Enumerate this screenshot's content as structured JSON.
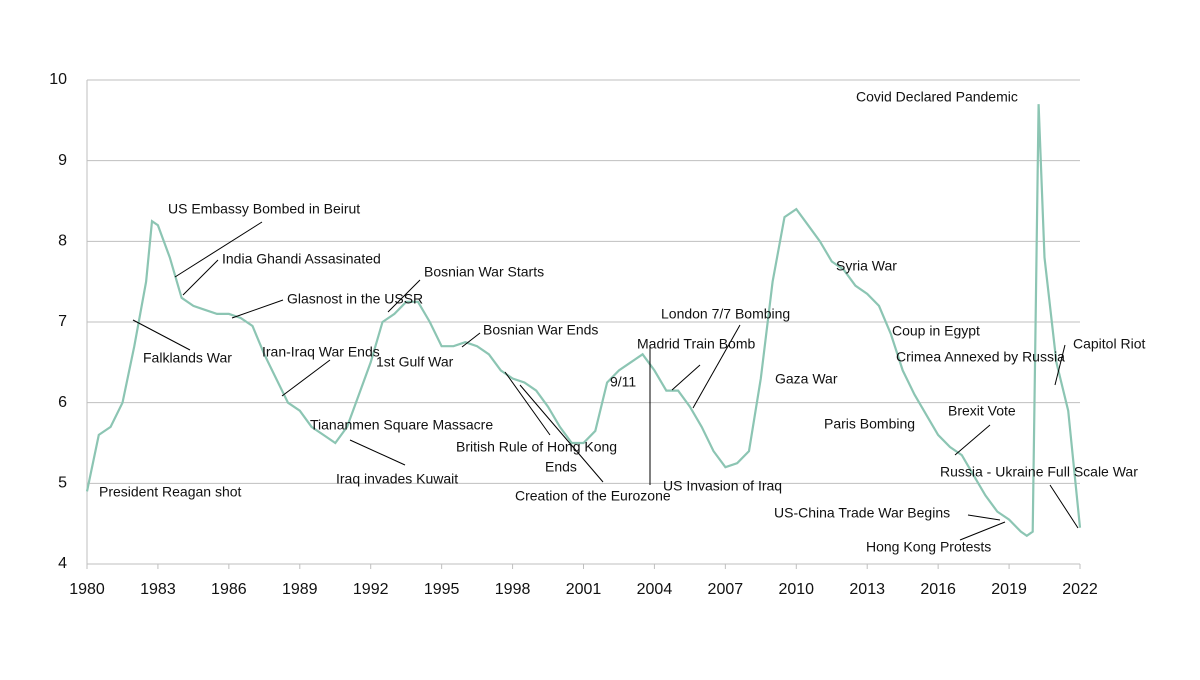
{
  "chart_data": {
    "type": "line",
    "x": [
      1980,
      1980.5,
      1981,
      1981.5,
      1982,
      1982.5,
      1982.75,
      1983,
      1983.5,
      1984,
      1984.5,
      1985,
      1985.5,
      1986,
      1986.5,
      1987,
      1987.5,
      1988,
      1988.5,
      1989,
      1989.5,
      1990,
      1990.5,
      1991,
      1991.5,
      1992,
      1992.5,
      1993,
      1993.5,
      1994,
      1994.5,
      1995,
      1995.5,
      1996,
      1996.5,
      1997,
      1997.5,
      1998,
      1998.5,
      1999,
      1999.5,
      2000,
      2000.5,
      2001,
      2001.5,
      2002,
      2002.5,
      2003,
      2003.5,
      2004,
      2004.5,
      2005,
      2005.5,
      2006,
      2006.5,
      2007,
      2007.5,
      2008,
      2008.5,
      2009,
      2009.5,
      2010,
      2010.5,
      2011,
      2011.5,
      2012,
      2012.5,
      2013,
      2013.5,
      2014,
      2014.5,
      2015,
      2015.5,
      2016,
      2016.5,
      2017,
      2017.5,
      2018,
      2018.5,
      2019,
      2019.5,
      2019.75,
      2020,
      2020.25,
      2020.5,
      2021,
      2021.5,
      2022
    ],
    "series": [
      {
        "color": "#8cc5b3",
        "values": [
          4.9,
          5.6,
          5.7,
          6.0,
          6.7,
          7.5,
          8.25,
          8.2,
          7.8,
          7.3,
          7.2,
          7.15,
          7.1,
          7.1,
          7.05,
          6.95,
          6.6,
          6.3,
          6.0,
          5.9,
          5.7,
          5.6,
          5.5,
          5.7,
          6.1,
          6.5,
          7.0,
          7.1,
          7.25,
          7.25,
          7.0,
          6.7,
          6.7,
          6.75,
          6.7,
          6.6,
          6.4,
          6.3,
          6.25,
          6.15,
          5.95,
          5.7,
          5.5,
          5.5,
          5.65,
          6.25,
          6.4,
          6.5,
          6.6,
          6.4,
          6.15,
          6.15,
          5.95,
          5.7,
          5.4,
          5.2,
          5.25,
          5.4,
          6.3,
          7.5,
          8.3,
          8.4,
          8.2,
          8.0,
          7.75,
          7.65,
          7.45,
          7.35,
          7.2,
          6.85,
          6.4,
          6.1,
          5.85,
          5.6,
          5.45,
          5.35,
          5.1,
          4.85,
          4.65,
          4.55,
          4.4,
          4.35,
          4.4,
          9.7,
          7.8,
          6.5,
          5.9,
          4.45
        ]
      }
    ],
    "xlim": [
      1980,
      2022
    ],
    "xticks": [
      1980,
      1983,
      1986,
      1989,
      1992,
      1995,
      1998,
      2001,
      2004,
      2007,
      2010,
      2013,
      2016,
      2019,
      2022
    ],
    "ylim": [
      4,
      10
    ],
    "yticks": [
      4,
      5,
      6,
      7,
      8,
      9,
      10
    ],
    "grid": true,
    "annotations": [
      [
        "US Embassy Bombed in Beirut"
      ],
      [
        "India Ghandi Assasinated"
      ],
      [
        "Glasnost in the USSR"
      ],
      [
        "Falklands War"
      ],
      [
        "Iran-Iraq War Ends"
      ],
      [
        "1st Gulf War"
      ],
      [
        "Bosnian War Starts"
      ],
      [
        "Bosnian War Ends"
      ],
      [
        "Tiananmen Square Massacre"
      ],
      [
        "Iraq invades Kuwait"
      ],
      [
        "President Reagan shot"
      ],
      [
        "British Rule of Hong Kong",
        "Ends"
      ],
      [
        "Creation of the Eurozone"
      ],
      [
        "9/11"
      ],
      [
        "Madrid Train Bomb"
      ],
      [
        "London 7/7 Bombing"
      ],
      [
        "US Invasion of Iraq"
      ],
      [
        "Gaza War"
      ],
      [
        "Covid Declared Pandemic"
      ],
      [
        "Syria War"
      ],
      [
        "Coup in Egypt"
      ],
      [
        "Crimea Annexed by Russia"
      ],
      [
        "Paris Bombing"
      ],
      [
        "Brexit Vote"
      ],
      [
        "Russia - Ukraine Full Scale War"
      ],
      [
        "US-China Trade War Begins"
      ],
      [
        "Hong Kong Protests"
      ],
      [
        "Capitol Riot"
      ]
    ]
  }
}
